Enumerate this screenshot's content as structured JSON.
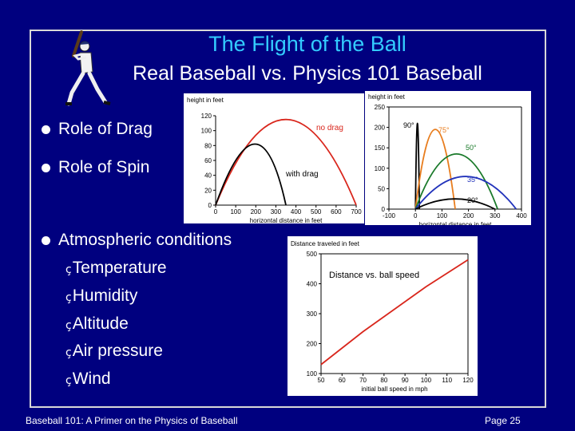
{
  "slide": {
    "title": "The Flight of the Ball",
    "subtitle": "Real Baseball vs. Physics 101 Baseball",
    "bullets": [
      "Role of Drag",
      "Role of Spin",
      "Atmospheric conditions"
    ],
    "sub_items": [
      "Temperature",
      "Humidity",
      "Altitude",
      "Air pressure",
      "Wind"
    ],
    "sub_marker": "ç",
    "footer_left": "Baseball 101: A Primer on the Physics of Baseball",
    "footer_right": "Page 25",
    "colors": {
      "background": "#00007f",
      "title": "#33ccff",
      "text": "#ffffff"
    },
    "icons": [
      "baseball-batter-clipart"
    ]
  },
  "chart_data": [
    {
      "type": "line",
      "ylabel": "height in feet",
      "xlabel": "horizontal distance in feet",
      "xlim": [
        0,
        700
      ],
      "ylim": [
        0,
        120
      ],
      "xticks": [
        0,
        100,
        200,
        300,
        400,
        500,
        600,
        700
      ],
      "yticks": [
        0,
        20,
        40,
        60,
        80,
        100,
        120
      ],
      "series": [
        {
          "name": "no drag",
          "color": "#d9261c",
          "x": [
            0,
            700
          ],
          "apex": 115
        },
        {
          "name": "with drag",
          "color": "#000000",
          "x": [
            0,
            350
          ],
          "apex": 82
        }
      ]
    },
    {
      "type": "line",
      "ylabel": "height in feet",
      "xlabel": "horizontal distance in feet",
      "xlim": [
        -100,
        400
      ],
      "ylim": [
        0,
        250
      ],
      "xticks": [
        -100,
        0,
        100,
        200,
        300,
        400
      ],
      "yticks": [
        0,
        50,
        100,
        150,
        200,
        250
      ],
      "series": [
        {
          "name": "90°",
          "color": "#000000",
          "x": [
            0,
            15
          ],
          "apex": 210
        },
        {
          "name": "75°",
          "color": "#e87d1e",
          "x": [
            0,
            150
          ],
          "apex": 195
        },
        {
          "name": "50°",
          "color": "#1a7a2a",
          "x": [
            0,
            310
          ],
          "apex": 135
        },
        {
          "name": "35°",
          "color": "#2233bb",
          "x": [
            0,
            380
          ],
          "apex": 80
        },
        {
          "name": "20°",
          "color": "#000000",
          "x": [
            0,
            300
          ],
          "apex": 25
        }
      ]
    },
    {
      "type": "line",
      "title": "Distance vs. ball speed",
      "ylabel": "Distance traveled in feet",
      "xlabel": "initial ball speed in mph",
      "xlim": [
        50,
        120
      ],
      "ylim": [
        100,
        500
      ],
      "xticks": [
        50,
        60,
        70,
        80,
        90,
        100,
        110,
        120
      ],
      "yticks": [
        100,
        200,
        300,
        400,
        500
      ],
      "series": [
        {
          "color": "#d9261c",
          "x": [
            50,
            60,
            70,
            80,
            90,
            100,
            110,
            120
          ],
          "y": [
            130,
            185,
            240,
            290,
            340,
            390,
            435,
            480
          ]
        }
      ]
    }
  ]
}
